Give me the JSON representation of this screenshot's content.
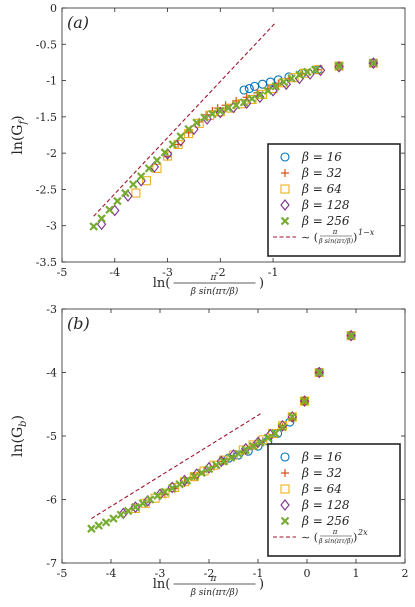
{
  "chart_data": [
    {
      "panel_label": "(a)",
      "type": "scatter",
      "xlabel": "ln(π / β sin(πτ/β))",
      "ylabel": "ln(G_f)",
      "xlim": [
        -5,
        1.5
      ],
      "ylim": [
        -3.5,
        0
      ],
      "xticks": [
        -5,
        -4,
        -3,
        -2,
        -1
      ],
      "xtick_labels": [
        "-5",
        "-4",
        "-3",
        "-2",
        "-1"
      ],
      "yticks": [
        0,
        -0.5,
        -1,
        -1.5,
        -2,
        -2.5,
        -3,
        -3.5
      ],
      "ytick_labels": [
        "0",
        "-0.5",
        "-1",
        "-1.5",
        "-2",
        "-2.5",
        "-3",
        "-3.5"
      ],
      "grid": false,
      "legend_position": "bottom-right",
      "series": [
        {
          "name": "β = 16",
          "marker": "circle",
          "color": "#0072BD",
          "x": [
            -1.55,
            -1.45,
            -1.35,
            -1.2,
            -1.05,
            -0.9,
            -0.7,
            -0.45,
            -0.15,
            0.25,
            0.9
          ],
          "y": [
            -1.13,
            -1.11,
            -1.08,
            -1.05,
            -1.02,
            -0.99,
            -0.95,
            -0.9,
            -0.85,
            -0.8,
            -0.76
          ]
        },
        {
          "name": "β = 32",
          "marker": "plus",
          "color": "#D95319",
          "x": [
            -3.0,
            -2.8,
            -2.6,
            -2.4,
            -2.25,
            -2.15,
            -2.05,
            -1.9,
            -1.7,
            -1.5,
            -1.3,
            -1.1,
            -0.9,
            -0.7,
            -0.45,
            -0.15,
            0.25,
            0.9
          ],
          "y": [
            -2.05,
            -1.88,
            -1.72,
            -1.57,
            -1.47,
            -1.42,
            -1.38,
            -1.34,
            -1.28,
            -1.23,
            -1.17,
            -1.11,
            -1.04,
            -0.97,
            -0.9,
            -0.85,
            -0.8,
            -0.76
          ]
        },
        {
          "name": "β = 64",
          "marker": "square",
          "color": "#EDB120",
          "x": [
            -3.6,
            -3.4,
            -3.2,
            -3.0,
            -2.8,
            -2.6,
            -2.4,
            -2.2,
            -2.0,
            -1.8,
            -1.6,
            -1.4,
            -1.2,
            -1.0,
            -0.8,
            -0.6,
            -0.4,
            -0.15,
            0.25,
            0.9
          ],
          "y": [
            -2.55,
            -2.38,
            -2.21,
            -2.04,
            -1.88,
            -1.73,
            -1.59,
            -1.48,
            -1.43,
            -1.38,
            -1.32,
            -1.26,
            -1.19,
            -1.11,
            -1.03,
            -0.96,
            -0.9,
            -0.85,
            -0.8,
            -0.76
          ]
        },
        {
          "name": "β = 128",
          "marker": "diamond",
          "color": "#7E2F8E",
          "x": [
            -4.25,
            -4.0,
            -3.75,
            -3.5,
            -3.25,
            -3.0,
            -2.75,
            -2.5,
            -2.25,
            -2.0,
            -1.75,
            -1.5,
            -1.25,
            -1.0,
            -0.75,
            -0.5,
            -0.3,
            -0.1,
            0.25,
            0.9
          ],
          "y": [
            -2.98,
            -2.79,
            -2.59,
            -2.38,
            -2.19,
            -2.01,
            -1.83,
            -1.67,
            -1.53,
            -1.44,
            -1.37,
            -1.31,
            -1.23,
            -1.14,
            -1.05,
            -0.97,
            -0.91,
            -0.86,
            -0.81,
            -0.76
          ]
        },
        {
          "name": "β = 256",
          "marker": "cross",
          "color": "#77AC30",
          "x": [
            -4.4,
            -4.25,
            -4.1,
            -3.95,
            -3.8,
            -3.65,
            -3.5,
            -3.35,
            -3.2,
            -3.05,
            -2.9,
            -2.75,
            -2.6,
            -2.45,
            -2.3,
            -2.15,
            -2.0,
            -1.85,
            -1.7,
            -1.55,
            -1.4,
            -1.25,
            -1.1,
            -0.95,
            -0.8,
            -0.65,
            -0.5,
            -0.35,
            -0.2,
            0.25,
            0.9
          ],
          "y": [
            -3.01,
            -2.9,
            -2.78,
            -2.66,
            -2.55,
            -2.43,
            -2.32,
            -2.21,
            -2.1,
            -1.99,
            -1.88,
            -1.77,
            -1.67,
            -1.58,
            -1.51,
            -1.46,
            -1.42,
            -1.38,
            -1.34,
            -1.3,
            -1.25,
            -1.2,
            -1.14,
            -1.08,
            -1.02,
            -0.97,
            -0.92,
            -0.88,
            -0.85,
            -0.8,
            -0.76
          ]
        }
      ],
      "reference_line": {
        "name": "∼ (π / β sin(πτ/β))^(1−x)",
        "style": "dashed",
        "color": "#A2142F",
        "x": [
          -4.4,
          -0.95
        ],
        "y": [
          -2.87,
          -0.2
        ]
      }
    },
    {
      "panel_label": "(b)",
      "type": "scatter",
      "xlabel": "ln(π / β sin(πτ/β))",
      "ylabel": "ln(G_b)",
      "xlim": [
        -5,
        2
      ],
      "ylim": [
        -7,
        -3
      ],
      "xticks": [
        -5,
        -4,
        -3,
        -2,
        -1,
        0,
        1,
        2
      ],
      "xtick_labels": [
        "-5",
        "-4",
        "-3",
        "-2",
        "-1",
        "0",
        "1",
        "2"
      ],
      "yticks": [
        -3,
        -4,
        -5,
        -6,
        -7
      ],
      "ytick_labels": [
        "-3",
        "-4",
        "-5",
        "-6",
        "-7"
      ],
      "grid": false,
      "legend_position": "bottom-right",
      "series": [
        {
          "name": "β = 16",
          "marker": "circle",
          "color": "#0072BD",
          "x": [
            -1.6,
            -1.4,
            -1.2,
            -1.0,
            -0.8,
            -0.6,
            -0.35,
            -0.05,
            0.25,
            0.9
          ],
          "y": [
            -5.35,
            -5.3,
            -5.24,
            -5.16,
            -5.08,
            -4.96,
            -4.78,
            -4.45,
            -4.0,
            -3.42
          ]
        },
        {
          "name": "β = 32",
          "marker": "plus",
          "color": "#D95319",
          "x": [
            -2.9,
            -2.7,
            -2.5,
            -2.3,
            -2.1,
            -1.9,
            -1.7,
            -1.5,
            -1.3,
            -1.1,
            -0.9,
            -0.7,
            -0.5,
            -0.3,
            -0.05,
            0.25,
            0.9
          ],
          "y": [
            -5.92,
            -5.83,
            -5.74,
            -5.65,
            -5.56,
            -5.48,
            -5.4,
            -5.32,
            -5.24,
            -5.16,
            -5.08,
            -4.98,
            -4.86,
            -4.72,
            -4.45,
            -4.0,
            -3.42
          ]
        },
        {
          "name": "β = 64",
          "marker": "square",
          "color": "#EDB120",
          "x": [
            -3.5,
            -3.3,
            -3.1,
            -2.9,
            -2.7,
            -2.5,
            -2.3,
            -2.1,
            -1.9,
            -1.7,
            -1.5,
            -1.3,
            -1.1,
            -0.9,
            -0.7,
            -0.5,
            -0.3,
            -0.05,
            0.25,
            0.9
          ],
          "y": [
            -6.14,
            -6.06,
            -5.98,
            -5.9,
            -5.81,
            -5.72,
            -5.64,
            -5.55,
            -5.46,
            -5.38,
            -5.3,
            -5.22,
            -5.14,
            -5.06,
            -4.96,
            -4.84,
            -4.7,
            -4.45,
            -4.0,
            -3.42
          ]
        },
        {
          "name": "β = 128",
          "marker": "diamond",
          "color": "#7E2F8E",
          "x": [
            -3.75,
            -3.5,
            -3.25,
            -3.0,
            -2.75,
            -2.5,
            -2.25,
            -2.0,
            -1.75,
            -1.5,
            -1.25,
            -1.0,
            -0.75,
            -0.5,
            -0.3,
            -0.05,
            0.25,
            0.9
          ],
          "y": [
            -6.22,
            -6.12,
            -6.02,
            -5.92,
            -5.81,
            -5.7,
            -5.6,
            -5.5,
            -5.4,
            -5.3,
            -5.2,
            -5.1,
            -4.98,
            -4.84,
            -4.7,
            -4.45,
            -4.0,
            -3.42
          ]
        },
        {
          "name": "β = 256",
          "marker": "cross",
          "color": "#77AC30",
          "x": [
            -4.4,
            -4.25,
            -4.1,
            -3.95,
            -3.8,
            -3.65,
            -3.5,
            -3.35,
            -3.2,
            -3.05,
            -2.9,
            -2.75,
            -2.6,
            -2.45,
            -2.3,
            -2.15,
            -2.0,
            -1.85,
            -1.7,
            -1.55,
            -1.4,
            -1.25,
            -1.1,
            -0.95,
            -0.8,
            -0.65,
            -0.5,
            -0.3,
            -0.05,
            0.25,
            0.9
          ],
          "y": [
            -6.46,
            -6.41,
            -6.36,
            -6.3,
            -6.24,
            -6.18,
            -6.12,
            -6.06,
            -6.0,
            -5.94,
            -5.88,
            -5.82,
            -5.76,
            -5.7,
            -5.64,
            -5.58,
            -5.52,
            -5.46,
            -5.4,
            -5.34,
            -5.28,
            -5.22,
            -5.16,
            -5.1,
            -5.03,
            -4.96,
            -4.86,
            -4.7,
            -4.45,
            -4.0,
            -3.42
          ]
        }
      ],
      "reference_line": {
        "name": "∼ (π / β sin(πτ/β))^(2x)",
        "style": "dashed",
        "color": "#A2142F",
        "x": [
          -4.4,
          -0.95
        ],
        "y": [
          -6.3,
          -4.65
        ]
      }
    }
  ]
}
